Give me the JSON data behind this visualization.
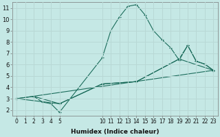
{
  "title": "",
  "xlabel": "Humidex (Indice chaleur)",
  "bg_color": "#c5e8e5",
  "grid_color": "#b8d8d5",
  "line_color": "#1a6b5a",
  "xlim": [
    -0.5,
    23.5
  ],
  "ylim": [
    1.5,
    11.5
  ],
  "xticks": [
    0,
    1,
    2,
    3,
    4,
    5,
    10,
    11,
    12,
    13,
    14,
    15,
    16,
    17,
    18,
    19,
    20,
    21,
    22,
    23
  ],
  "yticks": [
    2,
    3,
    4,
    5,
    6,
    7,
    8,
    9,
    10,
    11
  ],
  "lines": [
    {
      "x": [
        0,
        2,
        3,
        4,
        5,
        10,
        11,
        12,
        13,
        14,
        15,
        16,
        17,
        18,
        19,
        20,
        21,
        22,
        23
      ],
      "y": [
        3.0,
        3.2,
        2.7,
        2.55,
        1.8,
        6.6,
        9.0,
        10.2,
        11.15,
        11.3,
        10.4,
        9.0,
        8.2,
        7.5,
        6.4,
        7.7,
        6.3,
        6.05,
        5.5
      ]
    },
    {
      "x": [
        0,
        5,
        10,
        14,
        19,
        23
      ],
      "y": [
        3.0,
        2.55,
        4.3,
        4.5,
        6.5,
        5.5
      ]
    },
    {
      "x": [
        0,
        23
      ],
      "y": [
        3.0,
        5.5
      ]
    },
    {
      "x": [
        2,
        5,
        10,
        14,
        19,
        20,
        21,
        22,
        23
      ],
      "y": [
        3.2,
        2.55,
        4.3,
        4.5,
        6.5,
        7.7,
        6.3,
        6.05,
        5.5
      ]
    }
  ],
  "xlabel_fontsize": 6.5,
  "xlabel_fontweight": "bold",
  "tick_fontsize": 5.5,
  "ytick_fontsize": 6.0
}
